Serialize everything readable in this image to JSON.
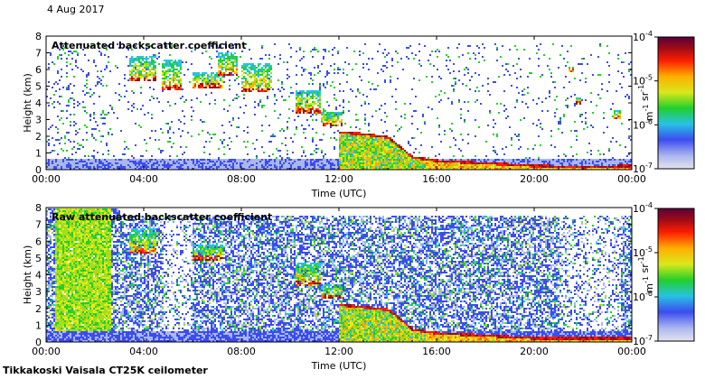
{
  "date_label": "4 Aug 2017",
  "instrument_label": "Tikkakoski Vaisala CT25K ceilometer",
  "chart_data": [
    {
      "type": "heatmap",
      "title": "Attenuated backscatter coefficient",
      "xlabel": "Time (UTC)",
      "ylabel": "Height (km)",
      "xlim": [
        "00:00",
        "24:00"
      ],
      "ylim": [
        0,
        8
      ],
      "x_ticks": [
        "00:00",
        "04:00",
        "08:00",
        "12:00",
        "16:00",
        "20:00",
        "00:00"
      ],
      "x_tick_hours": [
        0,
        4,
        8,
        12,
        16,
        20,
        24
      ],
      "y_ticks": [
        0,
        1,
        2,
        3,
        4,
        5,
        6,
        7,
        8
      ],
      "colorbar": {
        "scale": "log",
        "min": 1e-07,
        "max": 0.0001,
        "ticks": [
          {
            "base": "10",
            "exp": "-4",
            "value": 0.0001
          },
          {
            "base": "10",
            "exp": "-5",
            "value": 1e-05
          },
          {
            "base": "10",
            "exp": "-6",
            "value": 1e-06
          },
          {
            "base": "10",
            "exp": "-7",
            "value": 1e-07
          }
        ],
        "unit_parts": [
          {
            "base": "m",
            "exp": "-1"
          },
          {
            "base": " sr",
            "exp": "-1"
          }
        ]
      },
      "features": {
        "ground_layer_top_km": 0.5,
        "cloud_layers": [
          {
            "t_start_h": 3.4,
            "t_end_h": 4.5,
            "bottom_km": 5.3,
            "top_km": 6.8
          },
          {
            "t_start_h": 4.7,
            "t_end_h": 5.5,
            "bottom_km": 4.8,
            "top_km": 6.6
          },
          {
            "t_start_h": 6.0,
            "t_end_h": 7.2,
            "bottom_km": 4.9,
            "top_km": 5.8
          },
          {
            "t_start_h": 7.0,
            "t_end_h": 7.8,
            "bottom_km": 5.6,
            "top_km": 7.0
          },
          {
            "t_start_h": 8.0,
            "t_end_h": 9.2,
            "bottom_km": 4.6,
            "top_km": 6.4
          },
          {
            "t_start_h": 10.2,
            "t_end_h": 11.2,
            "bottom_km": 3.4,
            "top_km": 4.8
          },
          {
            "t_start_h": 11.2,
            "t_end_h": 12.1,
            "bottom_km": 2.6,
            "top_km": 3.5
          },
          {
            "t_start_h": 21.4,
            "t_end_h": 21.6,
            "bottom_km": 5.8,
            "top_km": 6.2
          },
          {
            "t_start_h": 21.7,
            "t_end_h": 21.9,
            "bottom_km": 3.9,
            "top_km": 4.3
          },
          {
            "t_start_h": 23.2,
            "t_end_h": 23.5,
            "bottom_km": 3.0,
            "top_km": 3.6
          }
        ],
        "boundary_layer_top": [
          {
            "t_h": 12.0,
            "km": 2.3
          },
          {
            "t_h": 13.0,
            "km": 2.2
          },
          {
            "t_h": 14.0,
            "km": 2.0
          },
          {
            "t_h": 15.0,
            "km": 0.8
          },
          {
            "t_h": 16.0,
            "km": 0.6
          },
          {
            "t_h": 18.0,
            "km": 0.45
          },
          {
            "t_h": 20.0,
            "km": 0.3
          },
          {
            "t_h": 22.0,
            "km": 0.2
          },
          {
            "t_h": 24.0,
            "km": 0.3
          }
        ]
      }
    },
    {
      "type": "heatmap",
      "title": "Raw attenuated backscatter coefficient",
      "xlabel": "Time (UTC)",
      "ylabel": "Height (km)",
      "xlim": [
        "00:00",
        "24:00"
      ],
      "ylim": [
        0,
        8
      ],
      "x_ticks": [
        "00:00",
        "04:00",
        "08:00",
        "12:00",
        "16:00",
        "20:00",
        "00:00"
      ],
      "x_tick_hours": [
        0,
        4,
        8,
        12,
        16,
        20,
        24
      ],
      "y_ticks": [
        0,
        1,
        2,
        3,
        4,
        5,
        6,
        7,
        8
      ],
      "colorbar": {
        "scale": "log",
        "min": 1e-07,
        "max": 0.0001,
        "ticks": [
          {
            "base": "10",
            "exp": "-4",
            "value": 0.0001
          },
          {
            "base": "10",
            "exp": "-5",
            "value": 1e-05
          },
          {
            "base": "10",
            "exp": "-6",
            "value": 1e-06
          },
          {
            "base": "10",
            "exp": "-7",
            "value": 1e-07
          }
        ],
        "unit_parts": [
          {
            "base": "m",
            "exp": "-1"
          },
          {
            "base": " sr",
            "exp": "-1"
          }
        ]
      },
      "features": {
        "high_noise_band": {
          "t_start_h": 0.3,
          "t_end_h": 2.6
        },
        "cloud_layers": [
          {
            "t_start_h": 3.4,
            "t_end_h": 4.5,
            "bottom_km": 5.3,
            "top_km": 6.8
          },
          {
            "t_start_h": 6.0,
            "t_end_h": 7.2,
            "bottom_km": 4.9,
            "top_km": 5.8
          },
          {
            "t_start_h": 10.2,
            "t_end_h": 11.2,
            "bottom_km": 3.4,
            "top_km": 4.8
          },
          {
            "t_start_h": 11.2,
            "t_end_h": 12.1,
            "bottom_km": 2.6,
            "top_km": 3.5
          }
        ],
        "boundary_layer_top": [
          {
            "t_h": 12.0,
            "km": 2.3
          },
          {
            "t_h": 14.0,
            "km": 2.0
          },
          {
            "t_h": 15.0,
            "km": 0.8
          },
          {
            "t_h": 16.0,
            "km": 0.6
          },
          {
            "t_h": 20.0,
            "km": 0.3
          },
          {
            "t_h": 24.0,
            "km": 0.3
          }
        ]
      }
    }
  ]
}
